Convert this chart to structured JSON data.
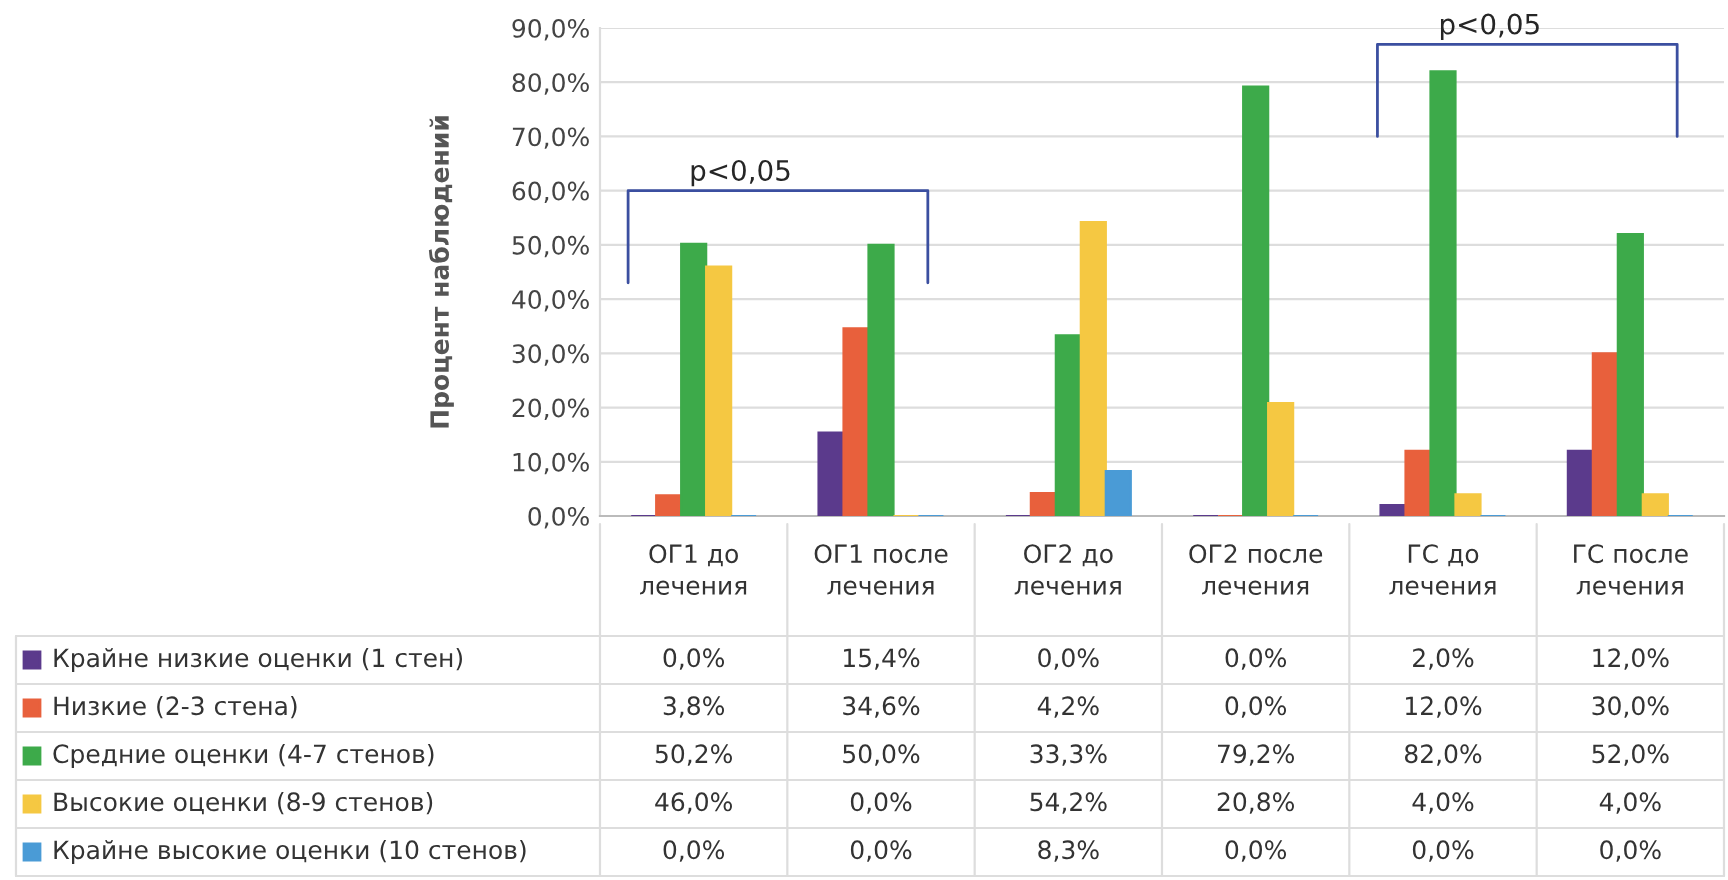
{
  "chart_data": {
    "type": "bar",
    "ylabel": "Процент наблюдений",
    "categories": [
      "ОГ1 до лечения",
      "ОГ1 после лечения",
      "ОГ2 до лечения",
      "ОГ2 после лечения",
      "ГС до лечения",
      "ГС после лечения"
    ],
    "series": [
      {
        "name": "Крайне низкие оценки (1 стен)",
        "color": "#5b3a8c",
        "values": [
          0.0,
          15.4,
          0.0,
          0.0,
          2.0,
          12.0
        ],
        "value_labels": [
          "0,0%",
          "15,4%",
          "0,0%",
          "0,0%",
          "2,0%",
          "12,0%"
        ]
      },
      {
        "name": "Низкие (2-3 стена)",
        "color": "#e8603c",
        "values": [
          3.8,
          34.6,
          4.2,
          0.0,
          12.0,
          30.0
        ],
        "value_labels": [
          "3,8%",
          "34,6%",
          "4,2%",
          "0,0%",
          "12,0%",
          "30,0%"
        ]
      },
      {
        "name": "Средние оценки (4-7 стенов)",
        "color": "#3daa4a",
        "values": [
          50.2,
          50.0,
          33.3,
          79.2,
          82.0,
          52.0
        ],
        "value_labels": [
          "50,2%",
          "50,0%",
          "33,3%",
          "79,2%",
          "82,0%",
          "52,0%"
        ]
      },
      {
        "name": "Высокие оценки (8-9 стенов)",
        "color": "#f5c842",
        "values": [
          46.0,
          0.0,
          54.2,
          20.8,
          4.0,
          4.0
        ],
        "value_labels": [
          "46,0%",
          "0,0%",
          "54,2%",
          "20,8%",
          "4,0%",
          "4,0%"
        ]
      },
      {
        "name": "Крайне высокие оценки (10 стенов)",
        "color": "#4a9bd6",
        "values": [
          0.0,
          0.0,
          8.3,
          0.0,
          0.0,
          0.0
        ],
        "value_labels": [
          "0,0%",
          "0,0%",
          "8,3%",
          "0,0%",
          "0,0%",
          "0,0%"
        ]
      }
    ],
    "ylim": [
      0,
      90
    ],
    "yticks": [
      {
        "value": 0,
        "label": "0,0%"
      },
      {
        "value": 10,
        "label": "10,0%"
      },
      {
        "value": 20,
        "label": "20,0%"
      },
      {
        "value": 30,
        "label": "30,0%"
      },
      {
        "value": 40,
        "label": "40,0%"
      },
      {
        "value": 50,
        "label": "50,0%"
      },
      {
        "value": 60,
        "label": "60,0%"
      },
      {
        "value": 70,
        "label": "70,0%"
      },
      {
        "value": 80,
        "label": "80,0%"
      },
      {
        "value": 90,
        "label": "90,0%"
      }
    ],
    "grid": "y",
    "legend": "bottom",
    "annotations": [
      "p<0,05",
      "p<0,05"
    ]
  }
}
